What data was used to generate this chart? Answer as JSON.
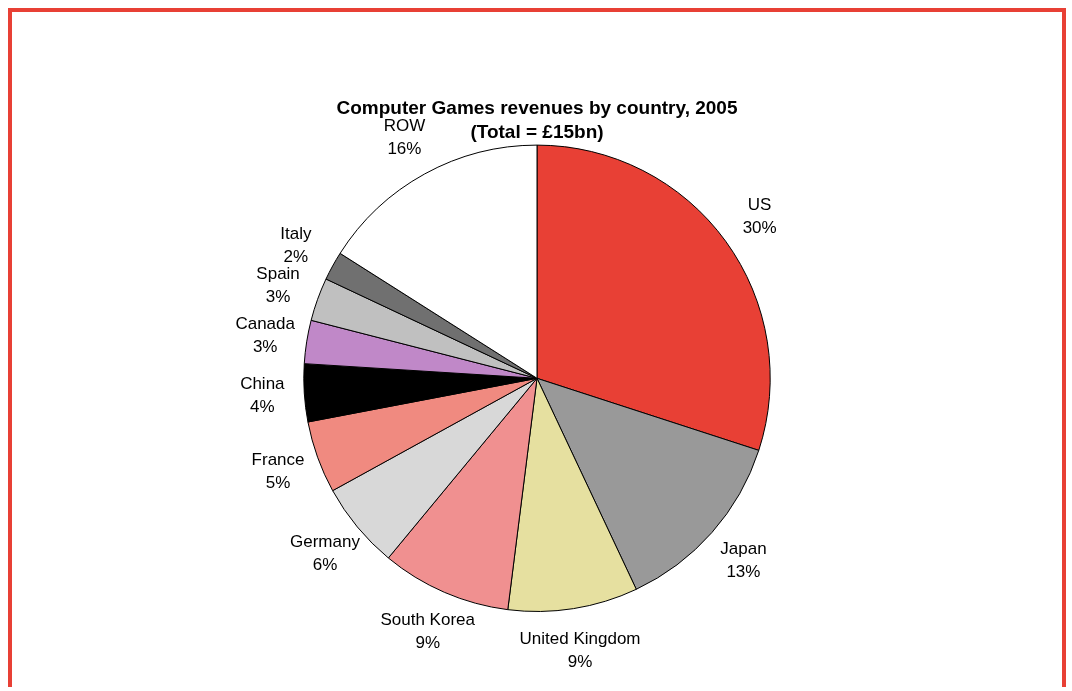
{
  "chart_data": {
    "type": "pie",
    "title": "Computer Games revenues by country, 2005",
    "subtitle": "(Total = £15bn)",
    "categories": [
      "US",
      "Japan",
      "United Kingdom",
      "South Korea",
      "Germany",
      "France",
      "China",
      "Canada",
      "Spain",
      "Italy",
      "ROW"
    ],
    "values": [
      30,
      13,
      9,
      9,
      6,
      5,
      4,
      3,
      3,
      2,
      16
    ],
    "colors": [
      "#e84035",
      "#999999",
      "#e6e0a0",
      "#f09090",
      "#d8d8d8",
      "#f08a80",
      "#000000",
      "#c088c8",
      "#c0c0c0",
      "#707070",
      "#ffffff"
    ],
    "value_labels": [
      "30%",
      "13%",
      "9%",
      "9%",
      "6%",
      "5%",
      "4%",
      "3%",
      "3%",
      "2%",
      "16%"
    ],
    "legend": false
  }
}
